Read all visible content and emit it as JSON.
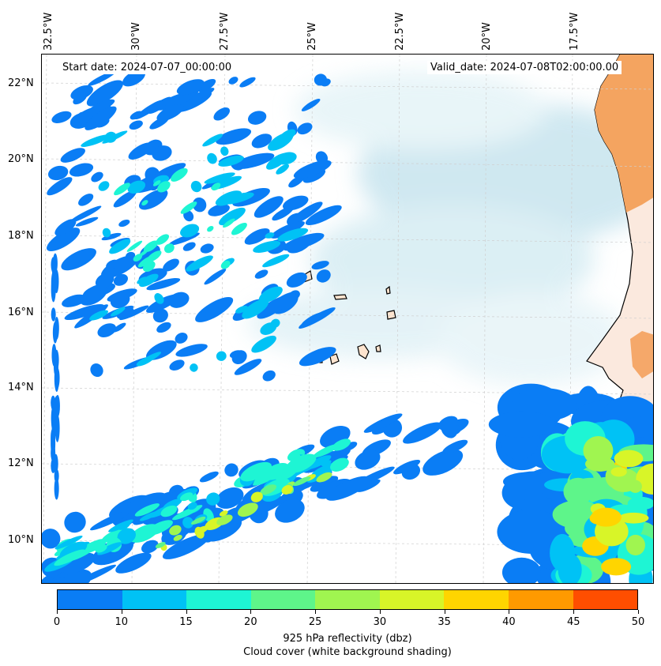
{
  "map": {
    "start_date": "Start date: 2024-07-07_00:00:00",
    "valid_date": "Valid_date: 2024-07-08T02:00:00.00",
    "lon_labels": [
      "32.5°W",
      "30°W",
      "27.5°W",
      "25°W",
      "22.5°W",
      "20°W",
      "17.5°W"
    ],
    "lat_labels": [
      "22°N",
      "20°N",
      "18°N",
      "16°N",
      "14°N",
      "12°N",
      "10°N"
    ],
    "colors": {
      "cloud_cover": "#add8e6",
      "land_orange": "#f4a460",
      "coast": "#000000"
    }
  },
  "colorbar": {
    "ticks": [
      "0",
      "10",
      "15",
      "20",
      "25",
      "30",
      "35",
      "40",
      "45",
      "50"
    ],
    "colors": [
      "#0a7df5",
      "#00c2f5",
      "#1ef5d4",
      "#5ef58a",
      "#a0f550",
      "#d8f528",
      "#ffd500",
      "#ff9a00",
      "#ff4e00"
    ],
    "label_line1": "925 hPa reflectivity (dbz)",
    "label_line2": "Cloud cover (white background shading)"
  }
}
